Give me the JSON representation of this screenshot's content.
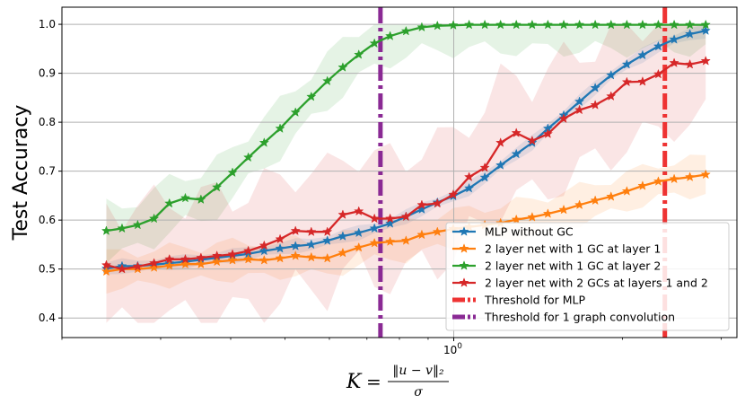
{
  "chart_data": {
    "type": "line",
    "title": "",
    "xlabel": "K = ‖u − v‖₂ / σ",
    "xlabel_parts": {
      "lhs": "K",
      "eq": "=",
      "numerator": "‖u − v‖₂",
      "denominator": "σ"
    },
    "ylabel": "Test Accuracy",
    "xscale": "log",
    "xlim": [
      0.2,
      3.2
    ],
    "ylim": [
      0.36,
      1.035
    ],
    "yticks": [
      0.4,
      0.5,
      0.6,
      0.7,
      0.8,
      0.9,
      1.0
    ],
    "ytick_labels": [
      "0.4",
      "0.5",
      "0.6",
      "0.7",
      "0.8",
      "0.9",
      "1.0"
    ],
    "xtick_label": {
      "base": "10",
      "exp": "0"
    },
    "grid": true,
    "legend_position": "lower-right",
    "x": [
      0.24,
      0.256,
      0.273,
      0.292,
      0.311,
      0.332,
      0.354,
      0.378,
      0.403,
      0.43,
      0.459,
      0.49,
      0.522,
      0.557,
      0.595,
      0.634,
      0.677,
      0.722,
      0.77,
      0.822,
      0.877,
      0.935,
      0.998,
      1.065,
      1.136,
      1.212,
      1.293,
      1.38,
      1.472,
      1.571,
      1.676,
      1.788,
      1.908,
      2.036,
      2.172,
      2.317,
      2.473,
      2.638,
      2.815
    ],
    "series": [
      {
        "name": "MLP without GC",
        "color": "#1f77b4",
        "values": [
          0.501,
          0.506,
          0.506,
          0.509,
          0.512,
          0.515,
          0.519,
          0.523,
          0.527,
          0.531,
          0.537,
          0.542,
          0.547,
          0.55,
          0.558,
          0.567,
          0.574,
          0.583,
          0.593,
          0.607,
          0.622,
          0.636,
          0.649,
          0.665,
          0.687,
          0.712,
          0.735,
          0.758,
          0.787,
          0.814,
          0.842,
          0.87,
          0.896,
          0.918,
          0.937,
          0.955,
          0.969,
          0.98,
          0.987
        ],
        "band": 0.012
      },
      {
        "name": "2 layer net with 1 GC at layer 1",
        "color": "#ff7f0e",
        "values": [
          0.495,
          0.5,
          0.5,
          0.503,
          0.507,
          0.51,
          0.51,
          0.515,
          0.518,
          0.52,
          0.518,
          0.522,
          0.527,
          0.524,
          0.522,
          0.533,
          0.544,
          0.553,
          0.556,
          0.558,
          0.57,
          0.576,
          0.582,
          0.586,
          0.59,
          0.594,
          0.601,
          0.606,
          0.613,
          0.621,
          0.631,
          0.64,
          0.648,
          0.659,
          0.67,
          0.679,
          0.684,
          0.688,
          0.693
        ],
        "band": 0.035
      },
      {
        "name": "2 layer net with 1 GC at layer 2",
        "color": "#2ca02c",
        "values": [
          0.578,
          0.583,
          0.59,
          0.603,
          0.634,
          0.645,
          0.642,
          0.667,
          0.697,
          0.728,
          0.758,
          0.787,
          0.82,
          0.852,
          0.884,
          0.912,
          0.938,
          0.961,
          0.976,
          0.986,
          0.994,
          0.997,
          0.998,
          0.999,
          0.999,
          0.999,
          0.999,
          0.999,
          0.999,
          0.999,
          0.999,
          0.999,
          0.999,
          0.999,
          0.999,
          0.999,
          0.999,
          0.999,
          0.999
        ],
        "band": 0.05
      },
      {
        "name": "2 layer net with 2 GCs at layers 1 and 2",
        "color": "#d62728",
        "values": [
          0.508,
          0.5,
          0.505,
          0.512,
          0.52,
          0.52,
          0.523,
          0.527,
          0.53,
          0.537,
          0.548,
          0.561,
          0.578,
          0.576,
          0.576,
          0.611,
          0.618,
          0.603,
          0.603,
          0.607,
          0.631,
          0.634,
          0.652,
          0.688,
          0.707,
          0.758,
          0.778,
          0.762,
          0.776,
          0.807,
          0.825,
          0.835,
          0.853,
          0.882,
          0.883,
          0.898,
          0.921,
          0.918,
          0.925
        ],
        "band": 0.12
      }
    ],
    "thresholds": [
      {
        "name": "Threshold for MLP",
        "color": "#ee3333",
        "x": 2.38
      },
      {
        "name": "Threshold for 1 graph convolution",
        "color": "#8a2a94",
        "x": 0.74
      }
    ]
  }
}
